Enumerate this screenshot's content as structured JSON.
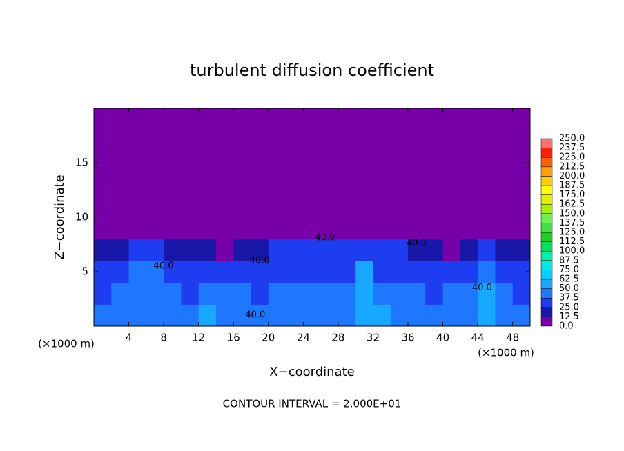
{
  "chart_data": {
    "type": "heatmap",
    "title": "turbulent diffusion coefficient",
    "xlabel": "X−coordinate",
    "ylabel": "Z−coordinate",
    "x_unit": "(×1000 m)",
    "y_unit": "(×1000 m)",
    "footnote": "CONTOUR INTERVAL = 2.000E+01",
    "xlim": [
      0,
      50
    ],
    "ylim": [
      0,
      20
    ],
    "xticks": [
      4,
      8,
      12,
      16,
      20,
      24,
      28,
      32,
      36,
      40,
      44,
      48
    ],
    "yticks": [
      5,
      10,
      15
    ],
    "x": [
      1,
      3,
      5,
      7,
      9,
      11,
      13,
      15,
      17,
      19,
      21,
      23,
      25,
      27,
      29,
      31,
      33,
      35,
      37,
      39,
      41,
      43,
      45,
      47,
      49
    ],
    "y": [
      1,
      3,
      5,
      7,
      9,
      11,
      13,
      15,
      17,
      19
    ],
    "z": [
      [
        40,
        45,
        38,
        42,
        45,
        40,
        50,
        42,
        38,
        40,
        45,
        42,
        38,
        40,
        45,
        55,
        50,
        42,
        40,
        38,
        40,
        42,
        55,
        45,
        40
      ],
      [
        35,
        40,
        42,
        45,
        40,
        35,
        38,
        42,
        40,
        35,
        38,
        40,
        42,
        38,
        42,
        55,
        45,
        40,
        38,
        35,
        38,
        42,
        50,
        40,
        35
      ],
      [
        30,
        32,
        38,
        40,
        35,
        30,
        30,
        32,
        35,
        30,
        30,
        32,
        35,
        32,
        35,
        50,
        35,
        30,
        30,
        28,
        30,
        35,
        40,
        35,
        30
      ],
      [
        20,
        22,
        28,
        25,
        22,
        18,
        15,
        12,
        18,
        22,
        25,
        28,
        25,
        28,
        30,
        32,
        28,
        25,
        22,
        15,
        12,
        18,
        25,
        22,
        20
      ],
      [
        0,
        0,
        0,
        0,
        0,
        0,
        0,
        0,
        0,
        0,
        0,
        0,
        0,
        0,
        0,
        0,
        0,
        0,
        0,
        0,
        0,
        0,
        0,
        0,
        0
      ],
      [
        0,
        0,
        0,
        0,
        0,
        0,
        0,
        0,
        0,
        0,
        0,
        0,
        0,
        0,
        0,
        0,
        0,
        0,
        0,
        0,
        0,
        0,
        0,
        0,
        0
      ],
      [
        0,
        0,
        0,
        0,
        0,
        0,
        0,
        0,
        0,
        0,
        0,
        0,
        0,
        0,
        0,
        0,
        0,
        0,
        0,
        0,
        0,
        0,
        0,
        0,
        0
      ],
      [
        0,
        0,
        0,
        0,
        0,
        0,
        0,
        0,
        0,
        0,
        0,
        0,
        0,
        0,
        0,
        0,
        0,
        0,
        0,
        0,
        0,
        0,
        0,
        0,
        0
      ],
      [
        0,
        0,
        0,
        0,
        0,
        0,
        0,
        0,
        0,
        0,
        0,
        0,
        0,
        0,
        0,
        0,
        0,
        0,
        0,
        0,
        0,
        0,
        0,
        0,
        0
      ],
      [
        0,
        0,
        0,
        0,
        0,
        0,
        0,
        0,
        0,
        0,
        0,
        0,
        0,
        0,
        0,
        0,
        0,
        0,
        0,
        0,
        0,
        0,
        0,
        0,
        0
      ]
    ],
    "levels": [
      {
        "value": 0,
        "label": "0.0"
      },
      {
        "value": 12.5,
        "label": "12.5"
      },
      {
        "value": 25,
        "label": "25.0"
      },
      {
        "value": 37.5,
        "label": "37.5"
      },
      {
        "value": 50,
        "label": "50.0"
      },
      {
        "value": 62.5,
        "label": "62.5"
      },
      {
        "value": 75,
        "label": "75.0"
      },
      {
        "value": 87.5,
        "label": "87.5"
      },
      {
        "value": 100,
        "label": "100.0"
      },
      {
        "value": 112.5,
        "label": "112.5"
      },
      {
        "value": 125,
        "label": "125.0"
      },
      {
        "value": 137.5,
        "label": "137.5"
      },
      {
        "value": 150,
        "label": "150.0"
      },
      {
        "value": 162.5,
        "label": "162.5"
      },
      {
        "value": 175,
        "label": "175.0"
      },
      {
        "value": 187.5,
        "label": "187.5"
      },
      {
        "value": 200,
        "label": "200.0"
      },
      {
        "value": 212.5,
        "label": "212.5"
      },
      {
        "value": 225,
        "label": "225.0"
      },
      {
        "value": 237.5,
        "label": "237.5"
      },
      {
        "value": 250,
        "label": "250.0"
      }
    ],
    "colors": [
      "#7800a8",
      "#1818a8",
      "#1e3cf0",
      "#1e78ff",
      "#18a8ff",
      "#00d0ff",
      "#00e8e0",
      "#00f0a8",
      "#00e060",
      "#20d020",
      "#40e040",
      "#70f050",
      "#a8f000",
      "#e0f000",
      "#ffff00",
      "#ffd000",
      "#ffa000",
      "#ff6000",
      "#ff2000",
      "#ff7070"
    ],
    "contour_labels": [
      {
        "label": "40.0",
        "x": 26.5,
        "y": 8.1
      },
      {
        "label": "40.0",
        "x": 19,
        "y": 6
      },
      {
        "label": "40.0",
        "x": 37,
        "y": 7.6
      },
      {
        "label": "40.0",
        "x": 18.5,
        "y": 1
      },
      {
        "label": "40.0",
        "x": 8,
        "y": 5.5
      },
      {
        "label": "40.0",
        "x": 44.5,
        "y": 3.5
      }
    ]
  }
}
